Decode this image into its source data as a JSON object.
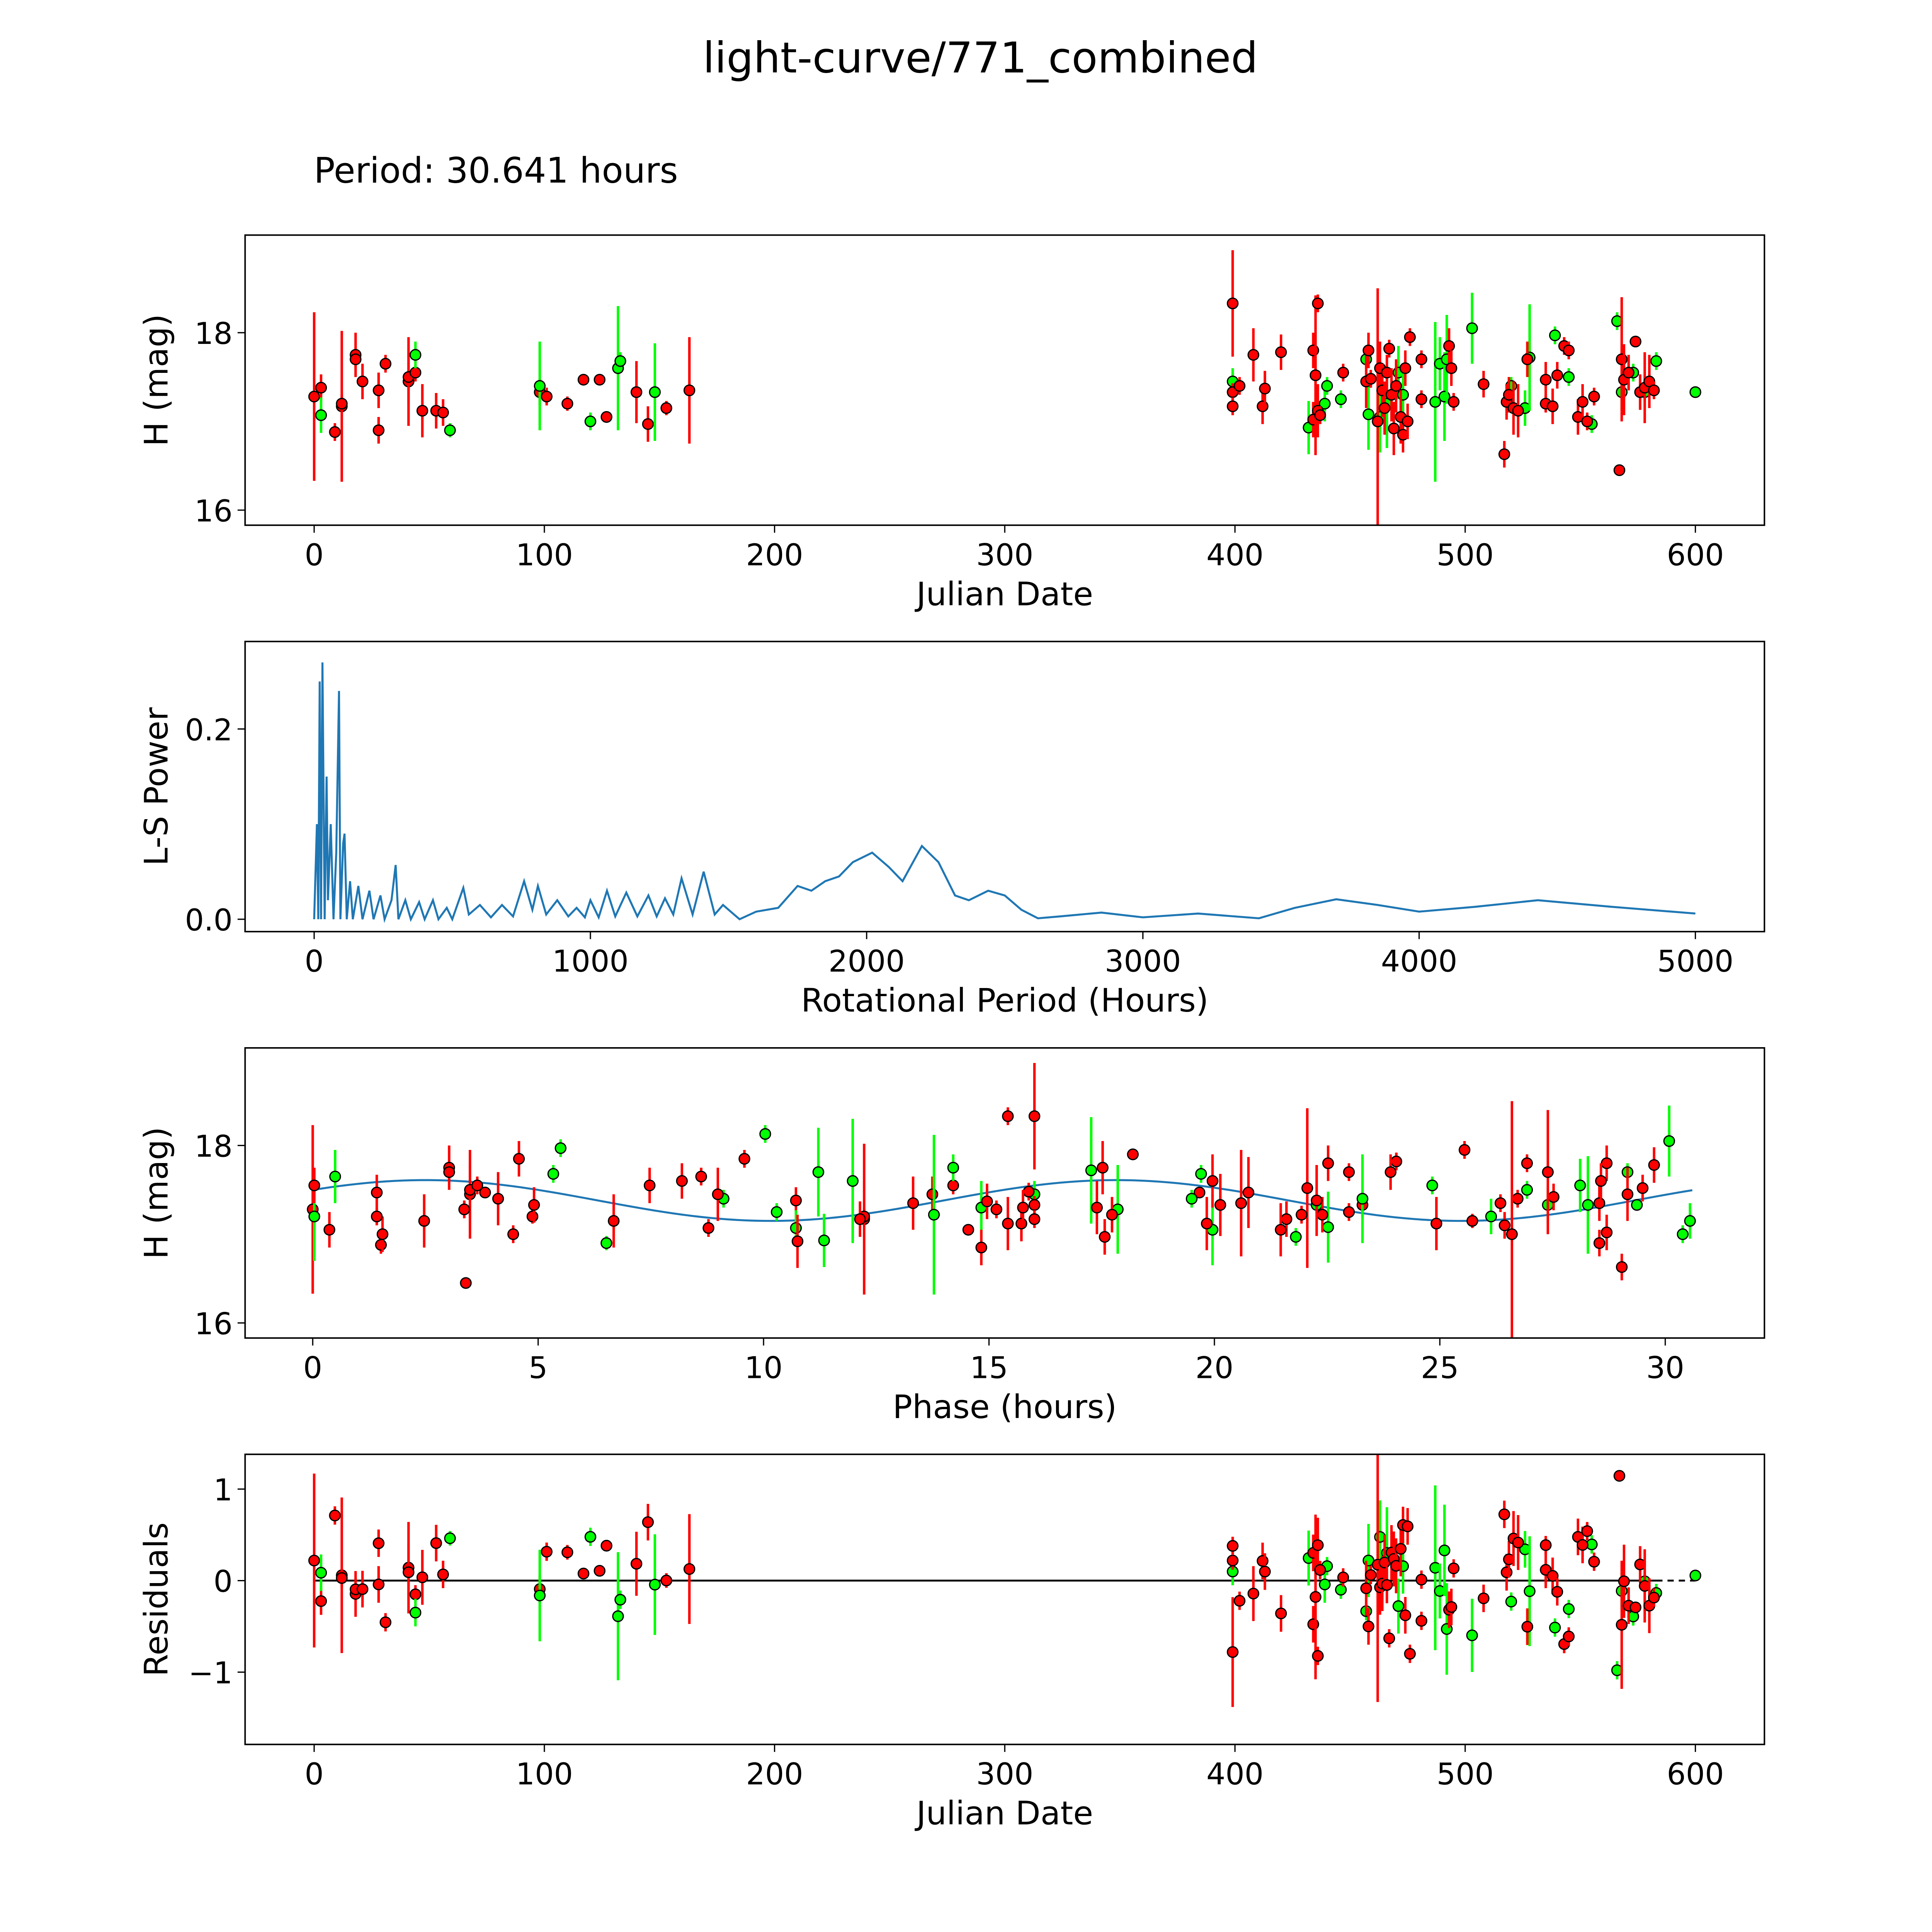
{
  "title": "light-curve/771_combined",
  "subtitle": "Period: 30.641 hours",
  "colors": {
    "r": "#ff0000",
    "g": "#00ff00",
    "model": "#1f77b4",
    "axis": "#000000"
  },
  "chart_data": [
    {
      "id": "lc",
      "type": "scatter",
      "xlabel": "Julian Date",
      "ylabel": "H (mag)",
      "xlim": [
        -30,
        630
      ],
      "ylim": [
        15.83,
        19.1
      ],
      "xticks": [
        0,
        100,
        200,
        300,
        400,
        500,
        600
      ],
      "yticks": [
        16,
        18
      ]
    },
    {
      "id": "ls",
      "type": "line",
      "xlabel": "Rotational Period (Hours)",
      "ylabel": "L-S Power",
      "xlim": [
        -250,
        5250
      ],
      "ylim": [
        -0.013,
        0.292
      ],
      "xticks": [
        0,
        1000,
        2000,
        3000,
        4000,
        5000
      ],
      "yticks": [
        0.0,
        0.2
      ],
      "points": [
        [
          0,
          0
        ],
        [
          10,
          0.1
        ],
        [
          15,
          0
        ],
        [
          20,
          0.25
        ],
        [
          25,
          0
        ],
        [
          30,
          0.27
        ],
        [
          38,
          0
        ],
        [
          45,
          0.15
        ],
        [
          50,
          0.02
        ],
        [
          60,
          0.1
        ],
        [
          70,
          0
        ],
        [
          80,
          0.07
        ],
        [
          90,
          0.24
        ],
        [
          95,
          0
        ],
        [
          105,
          0.08
        ],
        [
          110,
          0.09
        ],
        [
          118,
          0
        ],
        [
          130,
          0.04
        ],
        [
          140,
          0
        ],
        [
          160,
          0.035
        ],
        [
          175,
          0
        ],
        [
          200,
          0.03
        ],
        [
          215,
          0
        ],
        [
          240,
          0.025
        ],
        [
          255,
          0
        ],
        [
          280,
          0.02
        ],
        [
          295,
          0.057
        ],
        [
          305,
          0
        ],
        [
          330,
          0.02
        ],
        [
          350,
          0
        ],
        [
          380,
          0.018
        ],
        [
          400,
          0
        ],
        [
          430,
          0.02
        ],
        [
          450,
          0
        ],
        [
          480,
          0.012
        ],
        [
          500,
          0
        ],
        [
          540,
          0.033
        ],
        [
          560,
          0.005
        ],
        [
          600,
          0.015
        ],
        [
          640,
          0.002
        ],
        [
          680,
          0.015
        ],
        [
          720,
          0.003
        ],
        [
          760,
          0.04
        ],
        [
          790,
          0.01
        ],
        [
          810,
          0.035
        ],
        [
          840,
          0.005
        ],
        [
          880,
          0.02
        ],
        [
          920,
          0.003
        ],
        [
          950,
          0.012
        ],
        [
          980,
          0.002
        ],
        [
          1000,
          0.02
        ],
        [
          1030,
          0.002
        ],
        [
          1060,
          0.03
        ],
        [
          1090,
          0.003
        ],
        [
          1130,
          0.028
        ],
        [
          1170,
          0.003
        ],
        [
          1210,
          0.025
        ],
        [
          1240,
          0.003
        ],
        [
          1270,
          0.022
        ],
        [
          1300,
          0.005
        ],
        [
          1330,
          0.043
        ],
        [
          1370,
          0.005
        ],
        [
          1410,
          0.05
        ],
        [
          1450,
          0.005
        ],
        [
          1480,
          0.015
        ],
        [
          1540,
          0
        ],
        [
          1600,
          0.008
        ],
        [
          1680,
          0.012
        ],
        [
          1750,
          0.035
        ],
        [
          1800,
          0.03
        ],
        [
          1850,
          0.04
        ],
        [
          1900,
          0.045
        ],
        [
          1950,
          0.06
        ],
        [
          2020,
          0.07
        ],
        [
          2080,
          0.055
        ],
        [
          2130,
          0.04
        ],
        [
          2200,
          0.077
        ],
        [
          2260,
          0.06
        ],
        [
          2320,
          0.025
        ],
        [
          2370,
          0.02
        ],
        [
          2440,
          0.03
        ],
        [
          2500,
          0.025
        ],
        [
          2560,
          0.01
        ],
        [
          2620,
          0.001
        ],
        [
          2700,
          0.003
        ],
        [
          2850,
          0.007
        ],
        [
          3000,
          0.002
        ],
        [
          3200,
          0.006
        ],
        [
          3420,
          0.001
        ],
        [
          3550,
          0.012
        ],
        [
          3700,
          0.021
        ],
        [
          3850,
          0.015
        ],
        [
          4000,
          0.008
        ],
        [
          4200,
          0.013
        ],
        [
          4430,
          0.02
        ],
        [
          4700,
          0.013
        ],
        [
          5000,
          0.006
        ]
      ]
    },
    {
      "id": "ph",
      "type": "scatter",
      "xlabel": "Phase (hours)",
      "ylabel": "H (mag)",
      "xlim": [
        -1.5,
        32.2
      ],
      "ylim": [
        15.83,
        19.1
      ],
      "xticks": [
        0,
        5,
        10,
        15,
        20,
        25,
        30
      ],
      "yticks": [
        16,
        18
      ],
      "period_hours": 30.641,
      "model": {
        "mean": 17.38,
        "amplitude": 0.23,
        "harmonic": 2,
        "t0": -1.33
      }
    },
    {
      "id": "res",
      "type": "scatter",
      "xlabel": "Julian Date",
      "ylabel": "Residuals",
      "xlim": [
        -30,
        630
      ],
      "ylim": [
        -1.79,
        1.38
      ],
      "xticks": [
        0,
        100,
        200,
        300,
        400,
        500,
        600
      ],
      "yticks": [
        -1,
        0,
        1
      ]
    }
  ],
  "observations": [
    [
      0,
      17.28,
      0.95,
      "r"
    ],
    [
      3,
      17.38,
      0.15,
      "r"
    ],
    [
      9,
      16.88,
      0.1,
      "r"
    ],
    [
      12,
      17.17,
      0.85,
      "r"
    ],
    [
      12,
      17.2,
      0.1,
      "r"
    ],
    [
      18,
      17.75,
      0.25,
      "r"
    ],
    [
      18,
      17.7,
      0.1,
      "r"
    ],
    [
      21,
      17.45,
      0.2,
      "r"
    ],
    [
      28,
      17.35,
      0.2,
      "r"
    ],
    [
      28,
      16.9,
      0.15,
      "r"
    ],
    [
      31,
      17.65,
      0.1,
      "r"
    ],
    [
      41,
      17.45,
      0.5,
      "r"
    ],
    [
      41,
      17.5,
      0.3,
      "r"
    ],
    [
      44,
      17.55,
      0.1,
      "r"
    ],
    [
      47,
      17.12,
      0.3,
      "r"
    ],
    [
      53,
      17.12,
      0.2,
      "r"
    ],
    [
      56,
      17.1,
      0.15,
      "r"
    ],
    [
      98,
      17.33,
      0.15,
      "r"
    ],
    [
      101,
      17.28,
      0.1,
      "r"
    ],
    [
      110,
      17.2,
      0.08,
      "r"
    ],
    [
      117,
      17.47,
      0.05,
      "r"
    ],
    [
      124,
      17.47,
      0.05,
      "r"
    ],
    [
      127,
      17.05,
      0.05,
      "r"
    ],
    [
      140,
      17.33,
      0.35,
      "r"
    ],
    [
      145,
      16.97,
      0.2,
      "r"
    ],
    [
      153,
      17.15,
      0.08,
      "r"
    ],
    [
      163,
      17.35,
      0.6,
      "r"
    ],
    [
      3,
      17.07,
      0.2,
      "g"
    ],
    [
      44,
      17.75,
      0.15,
      "g"
    ],
    [
      59,
      16.9,
      0.08,
      "g"
    ],
    [
      98,
      17.4,
      0.5,
      "g"
    ],
    [
      120,
      17.0,
      0.1,
      "g"
    ],
    [
      132,
      17.6,
      0.7,
      "g"
    ],
    [
      133,
      17.68,
      0.1,
      "g"
    ],
    [
      148,
      17.33,
      0.55,
      "g"
    ],
    [
      399,
      17.45,
      0.15,
      "g"
    ],
    [
      432,
      16.93,
      0.3,
      "g"
    ],
    [
      439,
      17.2,
      0.2,
      "g"
    ],
    [
      440,
      17.4,
      0.1,
      "g"
    ],
    [
      446,
      17.25,
      0.1,
      "g"
    ],
    [
      457,
      17.7,
      0.1,
      "g"
    ],
    [
      458,
      17.08,
      0.4,
      "g"
    ],
    [
      463,
      17.05,
      0.4,
      "g"
    ],
    [
      466,
      17.2,
      0.5,
      "g"
    ],
    [
      471,
      17.55,
      0.3,
      "g"
    ],
    [
      473,
      17.3,
      0.3,
      "g"
    ],
    [
      487,
      17.22,
      0.9,
      "g"
    ],
    [
      489,
      17.65,
      0.3,
      "g"
    ],
    [
      491,
      17.28,
      0.5,
      "g"
    ],
    [
      492,
      17.7,
      0.5,
      "g"
    ],
    [
      503,
      18.05,
      0.4,
      "g"
    ],
    [
      520,
      17.4,
      0.1,
      "g"
    ],
    [
      526,
      17.15,
      0.2,
      "g"
    ],
    [
      528,
      17.72,
      0.6,
      "g"
    ],
    [
      539,
      17.97,
      0.1,
      "g"
    ],
    [
      545,
      17.5,
      0.1,
      "g"
    ],
    [
      555,
      16.97,
      0.1,
      "g"
    ],
    [
      566,
      18.13,
      0.1,
      "g"
    ],
    [
      568,
      17.33,
      0.2,
      "g"
    ],
    [
      573,
      17.55,
      0.1,
      "g"
    ],
    [
      578,
      17.33,
      0.1,
      "g"
    ],
    [
      583,
      17.68,
      0.1,
      "g"
    ],
    [
      600,
      17.33,
      0.05,
      "g"
    ],
    [
      399,
      18.33,
      0.6,
      "r"
    ],
    [
      399,
      17.33,
      0.1,
      "r"
    ],
    [
      399,
      17.17,
      0.1,
      "r"
    ],
    [
      402,
      17.4,
      0.1,
      "r"
    ],
    [
      408,
      17.75,
      0.3,
      "r"
    ],
    [
      412,
      17.17,
      0.2,
      "r"
    ],
    [
      413,
      17.37,
      0.2,
      "r"
    ],
    [
      420,
      17.78,
      0.2,
      "r"
    ],
    [
      434,
      17.8,
      0.2,
      "r"
    ],
    [
      434,
      17.02,
      0.2,
      "r"
    ],
    [
      435,
      17.52,
      0.9,
      "r"
    ],
    [
      436,
      18.33,
      0.1,
      "r"
    ],
    [
      436,
      17.12,
      0.3,
      "r"
    ],
    [
      437,
      17.07,
      0.1,
      "r"
    ],
    [
      447,
      17.55,
      0.1,
      "r"
    ],
    [
      457,
      17.45,
      0.3,
      "r"
    ],
    [
      458,
      17.8,
      0.2,
      "r"
    ],
    [
      459,
      17.48,
      0.1,
      "r"
    ],
    [
      462,
      17.0,
      1.5,
      "r"
    ],
    [
      463,
      17.6,
      0.3,
      "r"
    ],
    [
      464,
      17.35,
      0.3,
      "r"
    ],
    [
      465,
      17.15,
      0.3,
      "r"
    ],
    [
      466,
      17.55,
      0.2,
      "r"
    ],
    [
      467,
      17.82,
      0.1,
      "r"
    ],
    [
      468,
      17.3,
      0.3,
      "r"
    ],
    [
      469,
      16.92,
      0.3,
      "r"
    ],
    [
      470,
      17.4,
      0.3,
      "r"
    ],
    [
      472,
      17.05,
      0.3,
      "r"
    ],
    [
      473,
      16.85,
      0.2,
      "r"
    ],
    [
      474,
      17.6,
      0.2,
      "r"
    ],
    [
      475,
      17.0,
      0.2,
      "r"
    ],
    [
      476,
      17.95,
      0.1,
      "r"
    ],
    [
      481,
      17.7,
      0.1,
      "r"
    ],
    [
      481,
      17.25,
      0.1,
      "r"
    ],
    [
      493,
      17.85,
      0.2,
      "r"
    ],
    [
      494,
      17.6,
      0.2,
      "r"
    ],
    [
      495,
      17.22,
      0.1,
      "r"
    ],
    [
      508,
      17.42,
      0.15,
      "r"
    ],
    [
      517,
      16.63,
      0.15,
      "r"
    ],
    [
      518,
      17.22,
      0.2,
      "r"
    ],
    [
      519,
      17.3,
      0.2,
      "r"
    ],
    [
      521,
      17.15,
      0.3,
      "r"
    ],
    [
      523,
      17.12,
      0.3,
      "r"
    ],
    [
      527,
      17.7,
      0.2,
      "r"
    ],
    [
      535,
      17.47,
      0.2,
      "r"
    ],
    [
      535,
      17.2,
      0.1,
      "r"
    ],
    [
      538,
      17.17,
      0.2,
      "r"
    ],
    [
      540,
      17.52,
      0.15,
      "r"
    ],
    [
      543,
      17.85,
      0.1,
      "r"
    ],
    [
      545,
      17.8,
      0.1,
      "r"
    ],
    [
      549,
      17.05,
      0.2,
      "r"
    ],
    [
      551,
      17.22,
      0.2,
      "r"
    ],
    [
      553,
      17.0,
      0.1,
      "r"
    ],
    [
      556,
      17.28,
      0.1,
      "r"
    ],
    [
      567,
      16.45,
      0.03,
      "r"
    ],
    [
      568,
      17.7,
      0.7,
      "r"
    ],
    [
      569,
      17.47,
      0.4,
      "r"
    ],
    [
      571,
      17.55,
      0.2,
      "r"
    ],
    [
      574,
      17.9,
      0.05,
      "r"
    ],
    [
      576,
      17.33,
      0.2,
      "r"
    ],
    [
      578,
      17.38,
      0.4,
      "r"
    ],
    [
      580,
      17.45,
      0.3,
      "r"
    ],
    [
      582,
      17.35,
      0.1,
      "r"
    ]
  ]
}
